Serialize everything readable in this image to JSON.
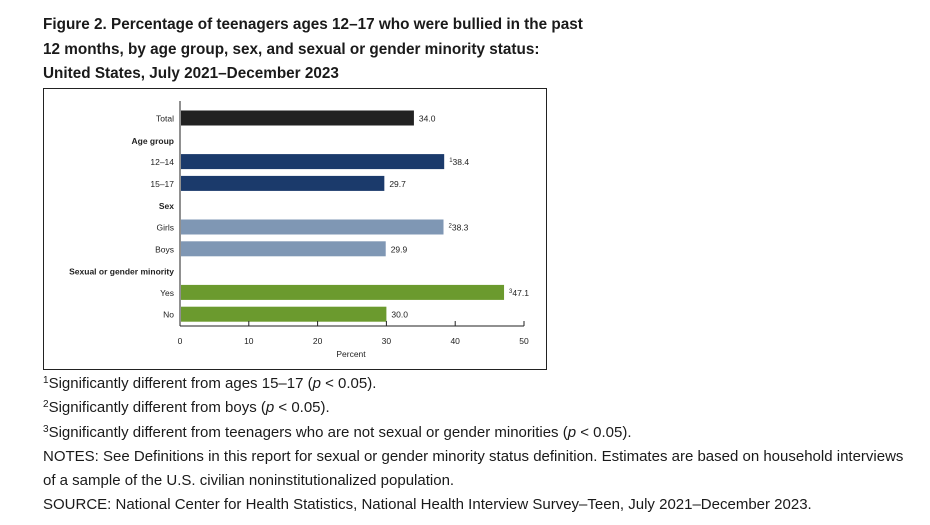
{
  "title": "Figure 2. Percentage of teenagers ages 12–17 who were bullied in the past 12 months, by age group, sex, and sexual or gender minority status: United States, July 2021–December 2023",
  "chart_data": {
    "type": "bar",
    "orientation": "horizontal",
    "xlabel": "Percent",
    "xlim": [
      0,
      50
    ],
    "xticks": [
      "0",
      "10",
      "20",
      "30",
      "40",
      "50"
    ],
    "grid": false,
    "rows": [
      {
        "kind": "bar",
        "label": "Total",
        "value": 34.0,
        "value_label": "34.0",
        "marker": "",
        "color": "#222222"
      },
      {
        "kind": "header",
        "label": "Age group"
      },
      {
        "kind": "bar",
        "label": "12–14",
        "value": 38.4,
        "value_label": "38.4",
        "marker": "1",
        "color": "#1b3a6b"
      },
      {
        "kind": "bar",
        "label": "15–17",
        "value": 29.7,
        "value_label": "29.7",
        "marker": "",
        "color": "#1b3a6b"
      },
      {
        "kind": "header",
        "label": "Sex"
      },
      {
        "kind": "bar",
        "label": "Girls",
        "value": 38.3,
        "value_label": "38.3",
        "marker": "2",
        "color": "#7f97b4"
      },
      {
        "kind": "bar",
        "label": "Boys",
        "value": 29.9,
        "value_label": "29.9",
        "marker": "",
        "color": "#7f97b4"
      },
      {
        "kind": "header",
        "label": "Sexual or gender minority"
      },
      {
        "kind": "bar",
        "label": "Yes",
        "value": 47.1,
        "value_label": "47.1",
        "marker": "3",
        "color": "#6b9a2e"
      },
      {
        "kind": "bar",
        "label": "No",
        "value": 30.0,
        "value_label": "30.0",
        "marker": "",
        "color": "#6b9a2e"
      }
    ]
  },
  "footnotes": [
    {
      "marker": "1",
      "before": "Significantly different from ages 15–17 (",
      "italic": "p",
      "after": " < 0.05)."
    },
    {
      "marker": "2",
      "before": "Significantly different from boys (",
      "italic": "p",
      "after": " < 0.05)."
    },
    {
      "marker": "3",
      "before": "Significantly different from teenagers who are not sexual or gender minorities (",
      "italic": "p",
      "after": " < 0.05)."
    }
  ],
  "notes": "NOTES: See Definitions in this report for sexual or gender minority status definition. Estimates are based on household interviews of a sample of the U.S. civilian noninstitutionalized population.",
  "source": "SOURCE: National Center for Health Statistics, National Health Interview Survey–Teen, July 2021–December 2023."
}
